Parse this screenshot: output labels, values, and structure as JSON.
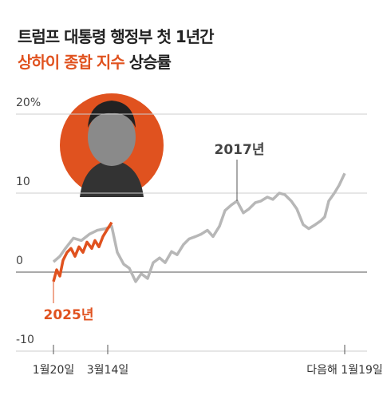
{
  "chart_data": {
    "type": "line",
    "title": "트럼프 대통령 행정부 첫 1년간",
    "subtitle_highlight": "상하이 종합 지수",
    "subtitle": "상승률",
    "xlim": [
      -47,
      393
    ],
    "ylim": [
      -10,
      20
    ],
    "xticks": [
      {
        "value": 0,
        "label": "1월20일"
      },
      {
        "value": 68,
        "label": "3월14일"
      },
      {
        "value": 365,
        "label": "다음해 1월19일"
      }
    ],
    "yticks": [
      {
        "value": 20,
        "label": "20%"
      },
      10,
      0,
      -10
    ],
    "grid": true,
    "series": [
      {
        "name": "2017년",
        "color": "#b7b7b7",
        "x": [
          0,
          8,
          15,
          25,
          35,
          45,
          55,
          65,
          73,
          80,
          88,
          95,
          103,
          110,
          118,
          125,
          133,
          140,
          148,
          155,
          163,
          170,
          178,
          185,
          193,
          200,
          208,
          215,
          223,
          230,
          238,
          245,
          253,
          260,
          268,
          275,
          283,
          290,
          298,
          305,
          313,
          320,
          328,
          335,
          340,
          345,
          352,
          358,
          365
        ],
        "values": [
          1.3,
          2.0,
          3.0,
          4.3,
          4.0,
          4.8,
          5.3,
          5.5,
          5.8,
          2.5,
          1.0,
          0.5,
          -1.2,
          -0.2,
          -0.8,
          1.2,
          1.8,
          1.2,
          2.6,
          2.2,
          3.5,
          4.2,
          4.5,
          4.8,
          5.3,
          4.5,
          5.8,
          7.8,
          8.5,
          9.0,
          7.5,
          8.0,
          8.8,
          9.0,
          9.5,
          9.2,
          10.0,
          9.8,
          9.0,
          8.0,
          6.0,
          5.5,
          6.0,
          6.5,
          7.0,
          9.0,
          10.0,
          11.0,
          12.5
        ]
      },
      {
        "name": "2025년",
        "color": "#e0521f",
        "x": [
          0,
          4,
          8,
          12,
          17,
          22,
          27,
          32,
          37,
          42,
          48,
          52,
          57,
          62,
          68,
          73
        ],
        "values": [
          -1.2,
          0.3,
          -0.5,
          1.5,
          2.5,
          3.0,
          2.0,
          3.2,
          2.5,
          3.8,
          3.0,
          4.0,
          3.2,
          4.5,
          5.5,
          6.3
        ]
      }
    ]
  }
}
